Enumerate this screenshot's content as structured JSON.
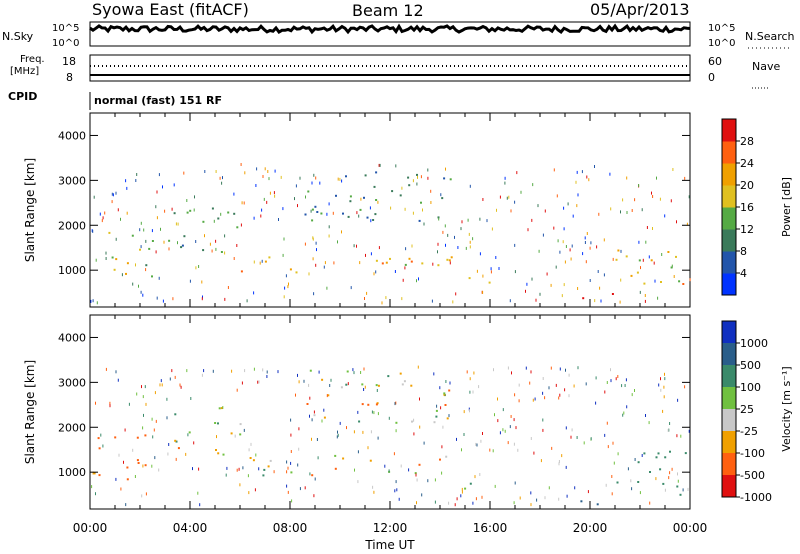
{
  "header": {
    "station": "Syowa East (fitACF)",
    "beam": "Beam 12",
    "date": "05/Apr/2013"
  },
  "strips": {
    "nsky_label": "N.Sky",
    "nsky_ticks": [
      "10^5",
      "10^0"
    ],
    "nsearch_label": "N.Search",
    "freq_label_1": "Freq.",
    "freq_label_2": "[MHz]",
    "freq_ticks": [
      "18",
      "8"
    ],
    "nave_label": "Nave",
    "nave_ticks": [
      "60",
      "0"
    ],
    "cpid_label": "CPID",
    "cpid_text": "normal (fast) 151 RF"
  },
  "chart_data": [
    {
      "type": "heatmap",
      "name": "power",
      "ylabel": "Slant Range [km]",
      "xlabel": "",
      "ylim": [
        180,
        4500
      ],
      "y_ticks": [
        "1000",
        "2000",
        "3000",
        "4000"
      ],
      "colorbar_label": "Power [dB]",
      "colorbar_ticks": [
        "4",
        "8",
        "12",
        "16",
        "20",
        "24",
        "28"
      ],
      "colorbar_colors": [
        "#0033ff",
        "#2255aa",
        "#3a7a5a",
        "#55aa44",
        "#e0c020",
        "#f0a000",
        "#ff6010",
        "#e01010"
      ],
      "regions": [
        {
          "t0": 0.0,
          "t1": 2.5,
          "r0": 850,
          "r1": 1900,
          "level": 16
        },
        {
          "t0": 3.0,
          "t1": 6.0,
          "r0": 1400,
          "r1": 2500,
          "level": 12
        },
        {
          "t0": 6.0,
          "t1": 14.5,
          "r0": 950,
          "r1": 1400,
          "level": 20
        },
        {
          "t0": 8.5,
          "t1": 14.5,
          "r0": 2100,
          "r1": 3300,
          "level": 10
        },
        {
          "t0": 14.5,
          "t1": 16.0,
          "r0": 600,
          "r1": 900,
          "level": 18
        },
        {
          "t0": 19.5,
          "t1": 21.0,
          "r0": 250,
          "r1": 500,
          "level": 26
        },
        {
          "t0": 21.0,
          "t1": 24.0,
          "r0": 500,
          "r1": 1500,
          "level": 20
        }
      ]
    },
    {
      "type": "heatmap",
      "name": "velocity",
      "ylabel": "Slant Range [km]",
      "xlabel": "Time UT",
      "ylim": [
        180,
        4500
      ],
      "xlim": [
        0,
        24
      ],
      "x_ticks": [
        "00:00",
        "04:00",
        "08:00",
        "12:00",
        "16:00",
        "20:00",
        "00:00"
      ],
      "y_ticks": [
        "1000",
        "2000",
        "3000",
        "4000"
      ],
      "colorbar_label": "Velocity [m s⁻¹]",
      "colorbar_ticks": [
        "1000",
        "500",
        "100",
        "25",
        "-25",
        "-100",
        "-500",
        "-1000"
      ],
      "colorbar_colors": [
        "#1030c0",
        "#2a5e8a",
        "#3a8a6a",
        "#70c040",
        "#c8c8c8",
        "#f0a000",
        "#ff6010",
        "#e01010"
      ],
      "regions": [
        {
          "t0": 0.0,
          "t1": 2.5,
          "r0": 850,
          "r1": 1900,
          "level": -200
        },
        {
          "t0": 3.0,
          "t1": 6.0,
          "r0": 1400,
          "r1": 2500,
          "level": 0
        },
        {
          "t0": 6.0,
          "t1": 14.5,
          "r0": 950,
          "r1": 1400,
          "level": 0
        },
        {
          "t0": 8.5,
          "t1": 14.5,
          "r0": 2100,
          "r1": 3300,
          "level": 0
        },
        {
          "t0": 14.5,
          "t1": 16.0,
          "r0": 600,
          "r1": 900,
          "level": 150
        },
        {
          "t0": 19.5,
          "t1": 21.0,
          "r0": 250,
          "r1": 500,
          "level": 800
        },
        {
          "t0": 21.0,
          "t1": 24.0,
          "r0": 500,
          "r1": 1500,
          "level": 300
        }
      ]
    }
  ]
}
